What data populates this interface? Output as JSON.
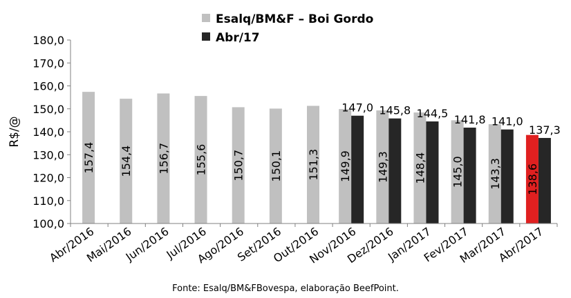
{
  "chart_data": {
    "type": "bar",
    "legend": [
      {
        "name": "Esalq/BM&F – Boi Gordo",
        "color": "#c0c0c0"
      },
      {
        "name": "Abr/17",
        "color": "#262626"
      }
    ],
    "ylabel": "R$/@",
    "ylim": [
      100,
      180
    ],
    "yticks": [
      "100,0",
      "110,0",
      "120,0",
      "130,0",
      "140,0",
      "150,0",
      "160,0",
      "170,0",
      "180,0"
    ],
    "categories": [
      "Abr/2016",
      "Mai/2016",
      "Jun/2016",
      "Jul/2016",
      "Ago/2016",
      "Set/2016",
      "Out/2016",
      "Nov/2016",
      "Dez/2016",
      "Jan/2017",
      "Fev/2017",
      "Mar/2017",
      "Abr/2017"
    ],
    "series": [
      {
        "name": "Esalq/BM&F – Boi Gordo",
        "values": [
          157.4,
          154.4,
          156.7,
          155.6,
          150.7,
          150.1,
          151.3,
          149.9,
          149.3,
          148.4,
          145.0,
          143.3,
          138.6
        ],
        "labels": [
          "157,4",
          "154,4",
          "156,7",
          "155,6",
          "150,7",
          "150,1",
          "151,3",
          "149,9",
          "149,3",
          "148,4",
          "145,0",
          "143,3",
          "138,6"
        ],
        "color": "#c0c0c0",
        "highlight_index": 12,
        "highlight_color": "#e02020"
      },
      {
        "name": "Abr/17",
        "values": [
          null,
          null,
          null,
          null,
          null,
          null,
          null,
          147.0,
          145.8,
          144.5,
          141.8,
          141.0,
          137.3
        ],
        "labels": [
          "",
          "",
          "",
          "",
          "",
          "",
          "",
          "147,0",
          "145,8",
          "144,5",
          "141,8",
          "141,0",
          "137,3"
        ],
        "color": "#262626"
      }
    ],
    "source": "Fonte: Esalq/BM&FBovespa, elaboração BeefPoint.",
    "grid": false,
    "legend_position": "top-center"
  }
}
